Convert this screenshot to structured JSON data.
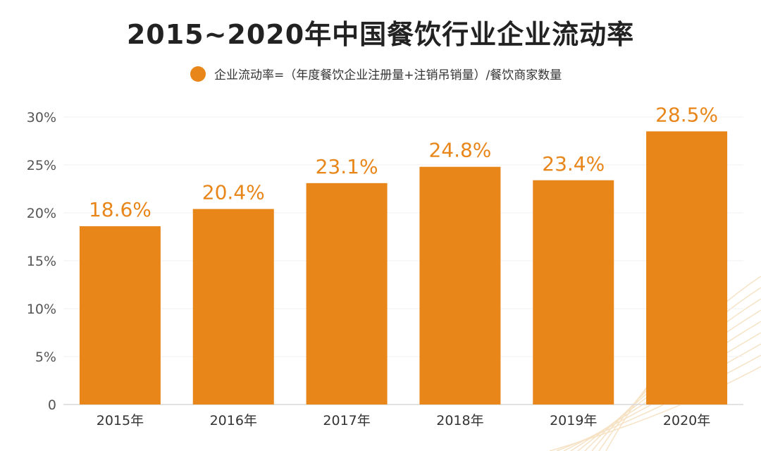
{
  "chart_data": {
    "type": "bar",
    "title": "2015~2020年中国餐饮行业企业流动率",
    "legend": {
      "label": "企业流动率=（年度餐饮企业注册量+注销吊销量）/餐饮商家数量",
      "placement": "top"
    },
    "categories": [
      "2015年",
      "2016年",
      "2017年",
      "2018年",
      "2019年",
      "2020年"
    ],
    "values": [
      18.6,
      20.4,
      23.1,
      24.8,
      23.4,
      28.5
    ],
    "data_labels": [
      "18.6%",
      "20.4%",
      "23.1%",
      "24.8%",
      "23.4%",
      "28.5%"
    ],
    "yticks": [
      0,
      5,
      10,
      15,
      20,
      25,
      30
    ],
    "ytick_labels": [
      "0",
      "5%",
      "10%",
      "15%",
      "20%",
      "25%",
      "30%"
    ],
    "ylim": [
      0,
      30
    ],
    "xlabel": "",
    "ylabel": "",
    "grid": true,
    "colors": {
      "bar": "#E8861A",
      "label": "#E8861A",
      "text": "#333333"
    }
  }
}
